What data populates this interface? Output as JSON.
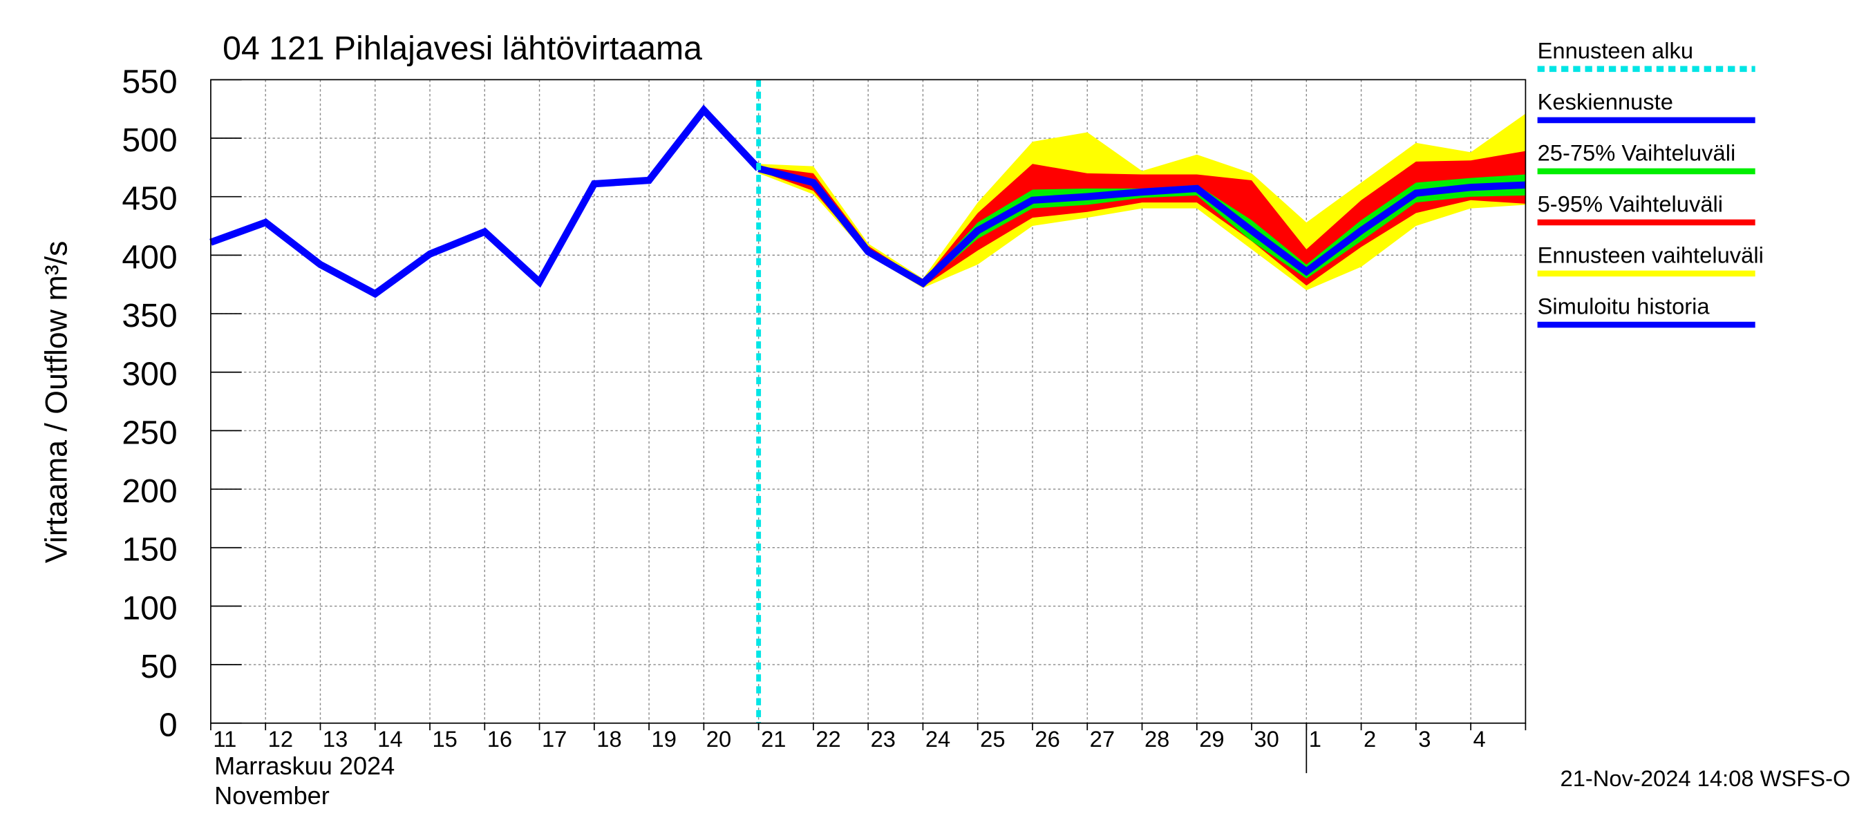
{
  "chart_data": {
    "type": "line",
    "title": "04 121 Pihlajavesi lähtövirtaama",
    "y_label": "Virtaama / Outflow    m³/s",
    "x_label_lines": [
      "Marraskuu 2024",
      "November"
    ],
    "footer": "21-Nov-2024 14:08 WSFS-O",
    "categories": [
      "11",
      "12",
      "13",
      "14",
      "15",
      "16",
      "17",
      "18",
      "19",
      "20",
      "21",
      "22",
      "23",
      "24",
      "25",
      "26",
      "27",
      "28",
      "29",
      "30",
      "1",
      "2",
      "3",
      "4",
      null
    ],
    "month_break_index": 20,
    "forecast_start_index": 10,
    "forecast_start": {
      "name": "Ennusteen alku",
      "color": "#00e5e5"
    },
    "ylim": [
      0,
      550
    ],
    "yticks": [
      0,
      50,
      100,
      150,
      200,
      250,
      300,
      350,
      400,
      450,
      500,
      550
    ],
    "grid": true,
    "bands": [
      {
        "name": "Ennusteen vaihteluväli",
        "color": "#ffff00",
        "high": [
          null,
          null,
          null,
          null,
          null,
          null,
          null,
          null,
          null,
          null,
          478,
          476,
          410,
          380,
          445,
          497,
          505,
          472,
          486,
          470,
          428,
          462,
          496,
          488,
          521
        ],
        "low": [
          null,
          null,
          null,
          null,
          null,
          null,
          null,
          null,
          null,
          null,
          470,
          452,
          400,
          372,
          392,
          425,
          432,
          440,
          440,
          405,
          370,
          390,
          425,
          440,
          443
        ]
      },
      {
        "name": "5-95% Vaihteluväli",
        "color": "#ff0000",
        "high": [
          null,
          null,
          null,
          null,
          null,
          null,
          null,
          null,
          null,
          null,
          476,
          470,
          408,
          378,
          436,
          478,
          470,
          469,
          469,
          464,
          405,
          447,
          480,
          481,
          489
        ],
        "low": [
          null,
          null,
          null,
          null,
          null,
          null,
          null,
          null,
          null,
          null,
          472,
          455,
          401,
          373,
          404,
          432,
          437,
          445,
          445,
          412,
          374,
          407,
          436,
          447,
          444
        ]
      },
      {
        "name": "25-75% Vaihteluväli",
        "color": "#00ee00",
        "high": [
          null,
          null,
          null,
          null,
          null,
          null,
          null,
          null,
          null,
          null,
          475,
          465,
          405,
          377,
          428,
          456,
          457,
          457,
          460,
          430,
          392,
          430,
          462,
          466,
          469
        ],
        "low": [
          null,
          null,
          null,
          null,
          null,
          null,
          null,
          null,
          null,
          null,
          473,
          459,
          402,
          374,
          414,
          440,
          443,
          449,
          451,
          412,
          380,
          412,
          445,
          450,
          451
        ]
      }
    ],
    "series": [
      {
        "name": "Keskiennuste",
        "color": "#0000ff",
        "values": [
          null,
          null,
          null,
          null,
          null,
          null,
          null,
          null,
          null,
          null,
          474,
          462,
          403,
          376,
          421,
          447,
          450,
          454,
          457,
          421,
          386,
          421,
          453,
          458,
          460
        ]
      },
      {
        "name": "Simuloitu historia",
        "color": "#0000ff",
        "values": [
          411,
          428,
          392,
          367,
          401,
          420,
          377,
          461,
          464,
          524,
          474,
          null,
          null,
          null,
          null,
          null,
          null,
          null,
          null,
          null,
          null,
          null,
          null,
          null,
          null
        ]
      }
    ],
    "legend_order": [
      "forecast_start",
      "series.0",
      "bands.2",
      "bands.1",
      "bands.0",
      "series.1"
    ]
  }
}
